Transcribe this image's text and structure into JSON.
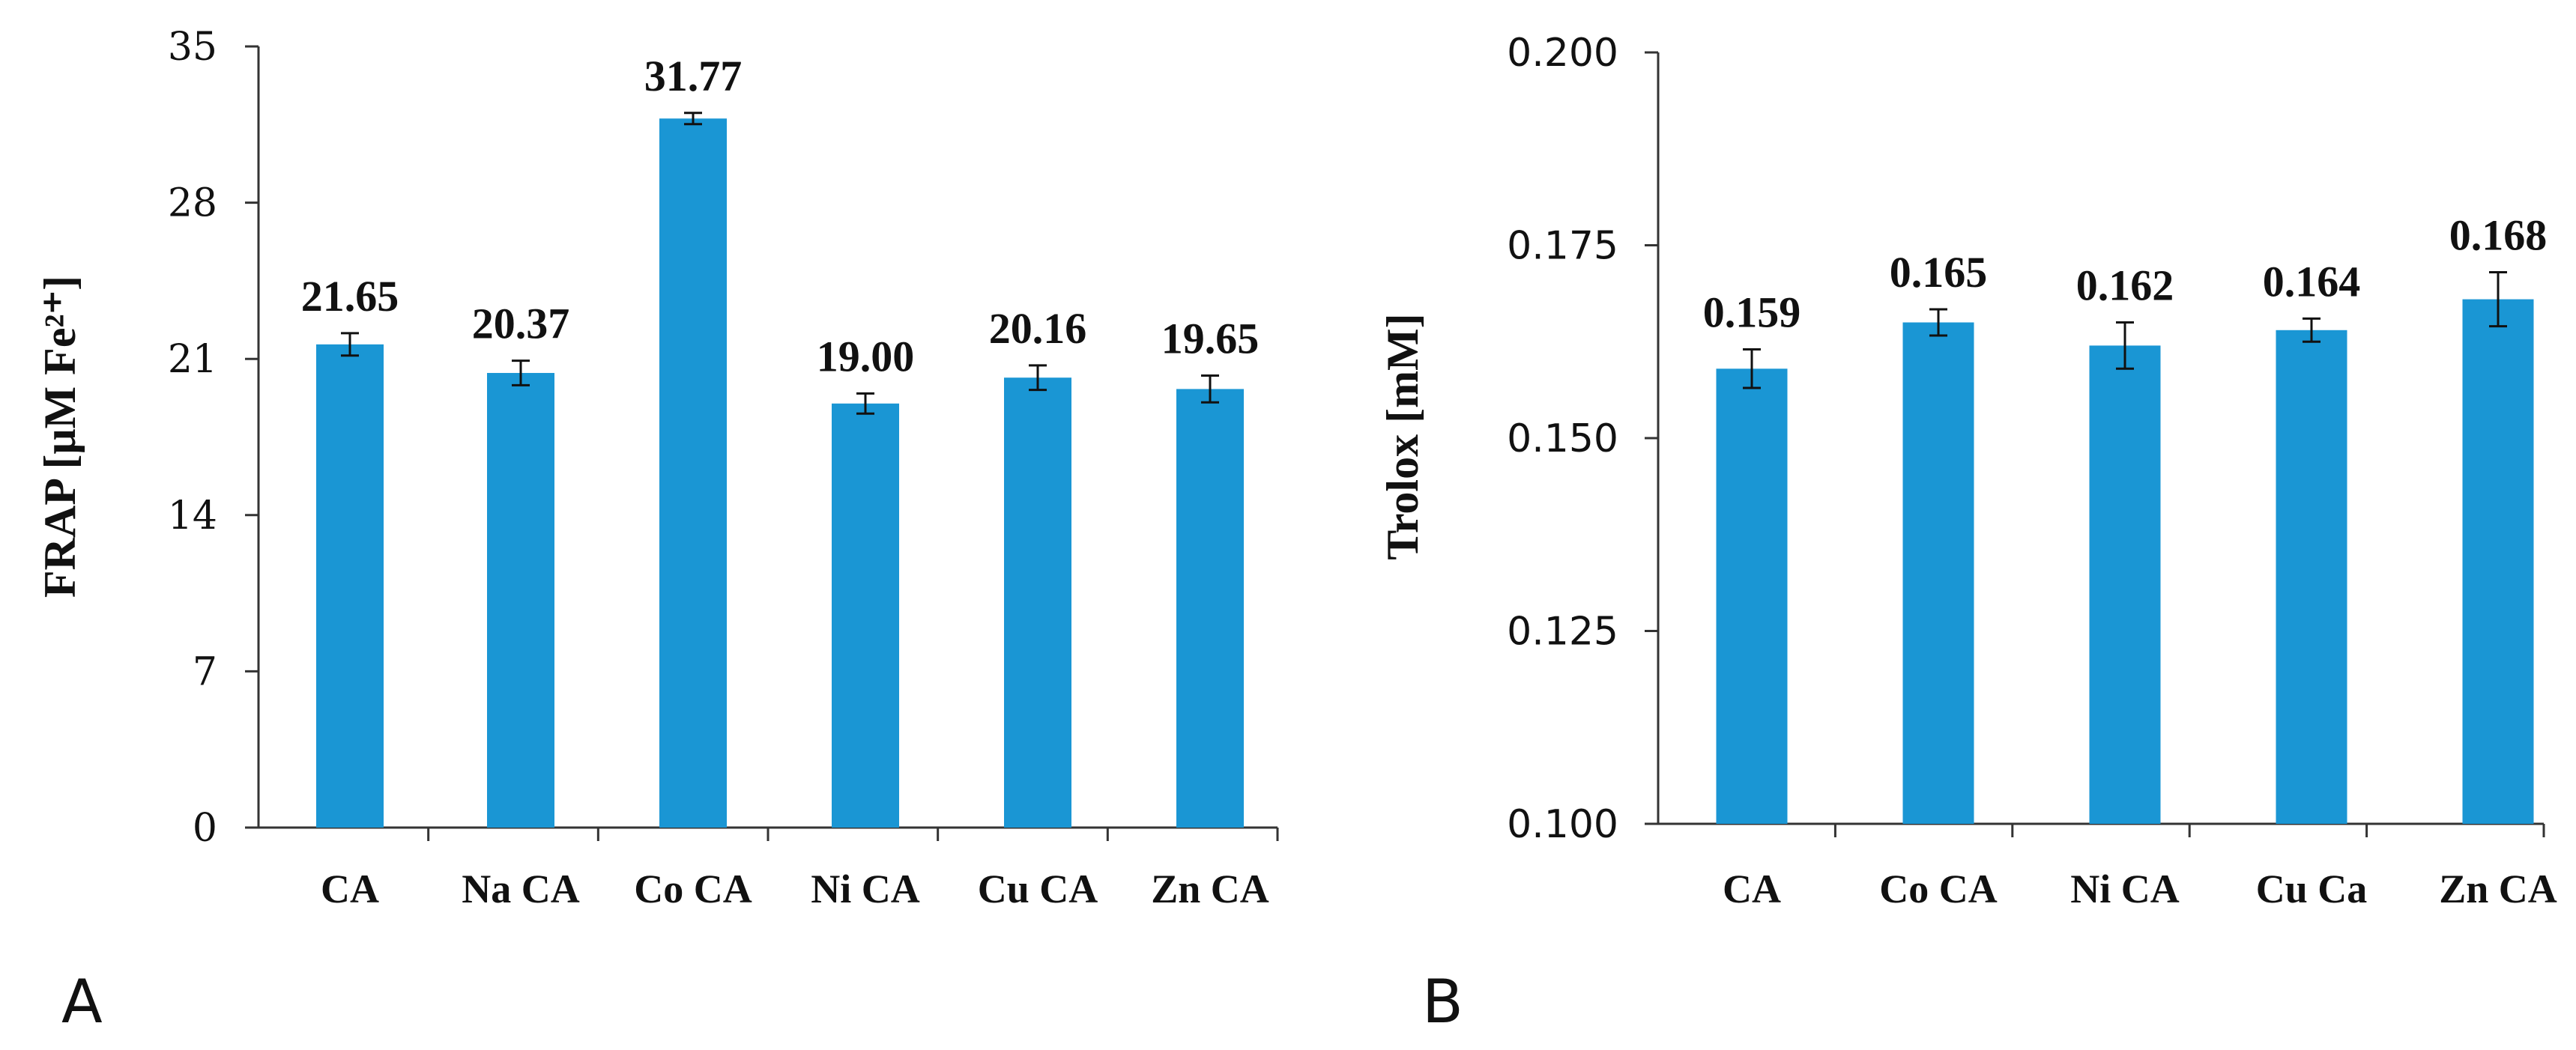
{
  "chart_data": [
    {
      "type": "bar",
      "panel_label": "A",
      "ylabel": "FRAP [μM Fe²⁺]",
      "ylim": [
        0,
        35
      ],
      "yticks": [
        0,
        7,
        14,
        21,
        28,
        35
      ],
      "categories": [
        "CA",
        "Na CA",
        "Co CA",
        "Ni CA",
        "Cu CA",
        "Zn CA"
      ],
      "values": [
        21.65,
        20.37,
        31.77,
        19.0,
        20.16,
        19.65
      ],
      "labels": [
        "21.65",
        "20.37",
        "31.77",
        "19.00",
        "20.16",
        "19.65"
      ],
      "errors": [
        0.5,
        0.55,
        0.25,
        0.45,
        0.55,
        0.6
      ],
      "color": "#1a96d4"
    },
    {
      "type": "bar",
      "panel_label": "B",
      "ylabel": "Trolox [mM]",
      "ylim": [
        0.1,
        0.2
      ],
      "yticks": [
        "0.100",
        "0.125",
        "0.150",
        "0.175",
        "0.200"
      ],
      "categories": [
        "CA",
        "Co CA",
        "Ni CA",
        "Cu Ca",
        "Zn CA"
      ],
      "values": [
        0.159,
        0.165,
        0.162,
        0.164,
        0.168
      ],
      "labels": [
        "0.159",
        "0.165",
        "0.162",
        "0.164",
        "0.168"
      ],
      "errors": [
        0.0025,
        0.0017,
        0.003,
        0.0015,
        0.0035
      ],
      "color": "#1a96d4"
    }
  ]
}
